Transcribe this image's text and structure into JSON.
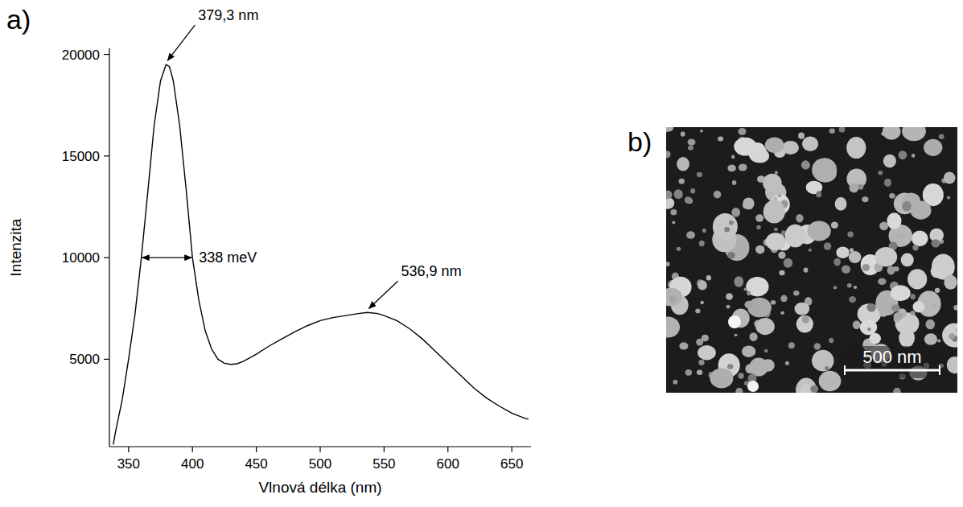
{
  "chart_data": {
    "type": "line",
    "panel_label": "a)",
    "x_label": "Vlnová délka (nm)",
    "y_label": "Intenzita",
    "color": "#000000",
    "x": [
      338,
      340,
      345,
      350,
      355,
      360,
      365,
      370,
      375,
      379.3,
      382,
      385,
      390,
      395,
      400,
      405,
      410,
      415,
      420,
      425,
      430,
      435,
      440,
      450,
      460,
      470,
      480,
      490,
      500,
      510,
      520,
      530,
      536.9,
      545,
      550,
      560,
      570,
      580,
      590,
      600,
      610,
      620,
      630,
      640,
      650,
      660,
      663
    ],
    "values": [
      800,
      1500,
      3000,
      5000,
      7200,
      10000,
      13200,
      16500,
      18700,
      19500,
      19400,
      18700,
      16500,
      13400,
      10000,
      7900,
      6400,
      5500,
      5000,
      4800,
      4750,
      4780,
      4900,
      5250,
      5650,
      6000,
      6350,
      6650,
      6900,
      7050,
      7150,
      7250,
      7300,
      7250,
      7150,
      6900,
      6500,
      6000,
      5400,
      4800,
      4200,
      3600,
      3100,
      2700,
      2350,
      2100,
      2050
    ],
    "xlim": [
      335,
      665
    ],
    "ylim": [
      700,
      20300
    ],
    "xticks": [
      350,
      400,
      450,
      500,
      550,
      600,
      650
    ],
    "yticks": [
      5000,
      10000,
      15000,
      20000
    ],
    "grid": false,
    "annotations": [
      {
        "text": "379,3 nm",
        "x": 379.3,
        "y": 19500
      },
      {
        "text": "536,9 nm",
        "x": 536.9,
        "y": 7300
      },
      {
        "text": "338 meV",
        "x": [
          360,
          400
        ],
        "y": 10000
      }
    ]
  },
  "sem_image": {
    "panel_label": "b)",
    "scale_bar_label": "500 nm"
  }
}
